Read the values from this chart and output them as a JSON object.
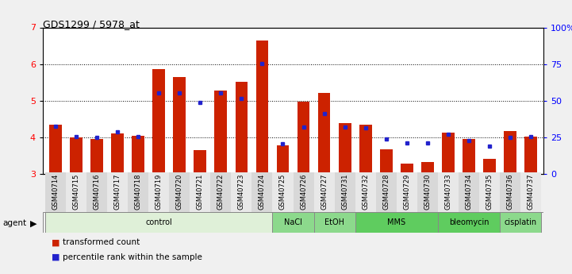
{
  "title": "GDS1299 / 5978_at",
  "samples": [
    "GSM40714",
    "GSM40715",
    "GSM40716",
    "GSM40717",
    "GSM40718",
    "GSM40719",
    "GSM40720",
    "GSM40721",
    "GSM40722",
    "GSM40723",
    "GSM40724",
    "GSM40725",
    "GSM40726",
    "GSM40727",
    "GSM40731",
    "GSM40732",
    "GSM40728",
    "GSM40729",
    "GSM40730",
    "GSM40733",
    "GSM40734",
    "GSM40735",
    "GSM40736",
    "GSM40737"
  ],
  "red_values": [
    4.35,
    4.0,
    3.95,
    4.1,
    4.05,
    5.87,
    5.65,
    3.65,
    5.28,
    5.52,
    6.65,
    3.78,
    4.98,
    5.22,
    4.38,
    4.35,
    3.68,
    3.28,
    3.32,
    4.12,
    3.95,
    3.42,
    4.18,
    4.02
  ],
  "blue_values": [
    4.3,
    4.02,
    4.0,
    4.15,
    4.02,
    5.22,
    5.22,
    4.95,
    5.22,
    5.05,
    6.02,
    3.83,
    4.28,
    4.65,
    4.28,
    4.25,
    3.95,
    3.85,
    3.85,
    4.08,
    3.92,
    3.75,
    4.0,
    4.02
  ],
  "agents": [
    {
      "label": "control",
      "start": 0,
      "end": 11,
      "color": "#dff0d8"
    },
    {
      "label": "NaCl",
      "start": 11,
      "end": 13,
      "color": "#8cd98c"
    },
    {
      "label": "EtOH",
      "start": 13,
      "end": 15,
      "color": "#8cd98c"
    },
    {
      "label": "MMS",
      "start": 15,
      "end": 19,
      "color": "#5fcc5f"
    },
    {
      "label": "bleomycin",
      "start": 19,
      "end": 22,
      "color": "#5fcc5f"
    },
    {
      "label": "cisplatin",
      "start": 22,
      "end": 24,
      "color": "#8cd98c"
    }
  ],
  "ylim_min": 3.0,
  "ylim_max": 7.0,
  "y_ticks_left": [
    3,
    4,
    5,
    6,
    7
  ],
  "right_ticks_vals": [
    0,
    25,
    50,
    75,
    100
  ],
  "right_tick_labels": [
    "0",
    "25",
    "50",
    "75",
    "100%"
  ],
  "bar_color": "#cc2200",
  "dot_color": "#2222cc",
  "background_color": "#f0f0f0",
  "plot_bg": "#ffffff",
  "grid_lines": [
    4,
    5,
    6
  ],
  "bar_width": 0.6
}
